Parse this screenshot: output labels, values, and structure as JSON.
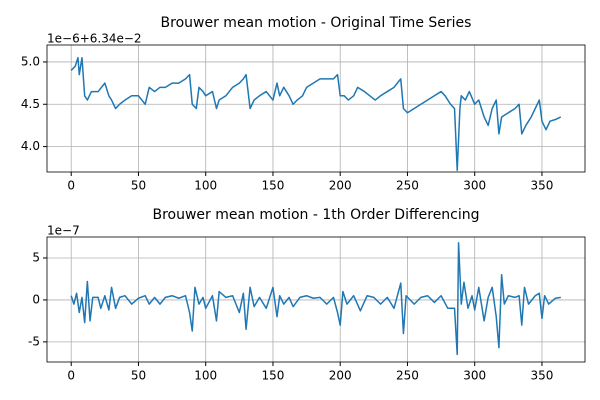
{
  "chart_data": [
    {
      "type": "line",
      "title": "Brouwer mean motion - Original Time Series",
      "offset_text": "1e−6+6.34e−2",
      "x": [
        0,
        3,
        5,
        6,
        8,
        10,
        12,
        15,
        20,
        25,
        28,
        30,
        33,
        36,
        40,
        45,
        50,
        55,
        58,
        62,
        66,
        70,
        75,
        80,
        85,
        88,
        90,
        93,
        95,
        98,
        100,
        105,
        108,
        110,
        115,
        120,
        125,
        128,
        130,
        133,
        136,
        140,
        145,
        150,
        153,
        155,
        158,
        162,
        165,
        168,
        172,
        175,
        180,
        185,
        190,
        195,
        198,
        200,
        203,
        206,
        210,
        213,
        218,
        222,
        226,
        230,
        235,
        240,
        245,
        247,
        250,
        255,
        260,
        265,
        270,
        275,
        278,
        282,
        285,
        287,
        289,
        290,
        293,
        296,
        300,
        303,
        307,
        310,
        313,
        316,
        318,
        320,
        325,
        330,
        333,
        335,
        338,
        342,
        345,
        348,
        350,
        353,
        356,
        360,
        364
      ],
      "values": [
        4.9,
        4.95,
        5.05,
        4.85,
        5.05,
        4.6,
        4.55,
        4.65,
        4.65,
        4.75,
        4.6,
        4.55,
        4.45,
        4.5,
        4.55,
        4.6,
        4.6,
        4.5,
        4.7,
        4.65,
        4.7,
        4.7,
        4.75,
        4.75,
        4.8,
        4.85,
        4.5,
        4.45,
        4.7,
        4.65,
        4.6,
        4.65,
        4.45,
        4.55,
        4.6,
        4.7,
        4.75,
        4.8,
        4.85,
        4.45,
        4.55,
        4.6,
        4.65,
        4.55,
        4.75,
        4.6,
        4.7,
        4.6,
        4.5,
        4.55,
        4.6,
        4.7,
        4.75,
        4.8,
        4.8,
        4.8,
        4.85,
        4.6,
        4.6,
        4.55,
        4.6,
        4.7,
        4.65,
        4.6,
        4.55,
        4.6,
        4.65,
        4.7,
        4.8,
        4.45,
        4.4,
        4.45,
        4.5,
        4.55,
        4.6,
        4.65,
        4.6,
        4.5,
        4.45,
        3.72,
        4.45,
        4.6,
        4.55,
        4.65,
        4.5,
        4.55,
        4.35,
        4.25,
        4.45,
        4.55,
        4.15,
        4.35,
        4.4,
        4.45,
        4.5,
        4.15,
        4.25,
        4.35,
        4.45,
        4.55,
        4.3,
        4.2,
        4.3,
        4.32,
        4.35
      ],
      "color": "#1f77b4",
      "xlim": [
        -18,
        382
      ],
      "ylim": [
        3.7,
        5.2
      ],
      "xticks": [
        0,
        50,
        100,
        150,
        200,
        250,
        300,
        350
      ],
      "yticks": [
        {
          "value": 4,
          "label": "4.0"
        },
        {
          "value": 4.5,
          "label": "4.5"
        },
        {
          "value": 5,
          "label": "5.0"
        }
      ],
      "grid": true
    },
    {
      "type": "line",
      "title": "Brouwer mean motion - 1th Order Differencing",
      "offset_text": "1e−7",
      "x": [
        0,
        2,
        4,
        6,
        8,
        10,
        12,
        14,
        16,
        20,
        22,
        25,
        28,
        30,
        33,
        36,
        40,
        45,
        50,
        55,
        58,
        62,
        66,
        70,
        75,
        80,
        85,
        88,
        90,
        92,
        95,
        98,
        100,
        105,
        108,
        110,
        115,
        120,
        125,
        128,
        130,
        133,
        136,
        140,
        145,
        150,
        153,
        155,
        158,
        162,
        165,
        170,
        175,
        180,
        185,
        190,
        195,
        198,
        200,
        202,
        205,
        210,
        215,
        220,
        225,
        230,
        235,
        240,
        245,
        247,
        249,
        255,
        260,
        265,
        270,
        275,
        280,
        285,
        287,
        288,
        290,
        292,
        295,
        298,
        300,
        303,
        307,
        310,
        313,
        316,
        318,
        320,
        322,
        325,
        330,
        333,
        335,
        337,
        340,
        345,
        348,
        350,
        352,
        355,
        360,
        364
      ],
      "values": [
        0.5,
        -0.5,
        0.8,
        -1.5,
        0.3,
        -2.7,
        2.2,
        -2.5,
        0.3,
        0.3,
        -1,
        0.5,
        -1.2,
        1.5,
        -1,
        0.3,
        0.5,
        -0.5,
        0.2,
        0.5,
        -0.5,
        0.3,
        -0.5,
        0.3,
        0.5,
        0.2,
        0.5,
        -1.5,
        -3.7,
        1.5,
        -0.5,
        0.3,
        -1,
        0.5,
        -2.5,
        1,
        0.3,
        0.5,
        -1.5,
        0.8,
        -3.5,
        1.5,
        -0.8,
        0.3,
        -1,
        1.5,
        -2,
        0.5,
        -0.5,
        0.3,
        -0.8,
        0.3,
        0.5,
        0.2,
        0.3,
        -0.5,
        0.3,
        -1.5,
        -3,
        1,
        -0.5,
        0.5,
        -1.3,
        0.5,
        0.3,
        -0.5,
        0.3,
        -1,
        2,
        -4,
        0.5,
        -0.5,
        0.3,
        0.5,
        -0.3,
        0.5,
        -1,
        -1,
        -6.5,
        6.8,
        -0.5,
        2.1,
        -1,
        0.5,
        -1.2,
        1.5,
        -2.5,
        0.3,
        1.5,
        -2,
        -5.7,
        3,
        -0.5,
        0.5,
        0.3,
        0.5,
        -3,
        1.5,
        -0.5,
        0.5,
        0.8,
        -2.2,
        0.5,
        -0.5,
        0.2,
        0.3
      ],
      "color": "#1f77b4",
      "xlim": [
        -18,
        382
      ],
      "ylim": [
        -7.4,
        7.5
      ],
      "xticks": [
        0,
        50,
        100,
        150,
        200,
        250,
        300,
        350
      ],
      "yticks": [
        -5,
        0,
        5
      ],
      "grid": true
    }
  ]
}
